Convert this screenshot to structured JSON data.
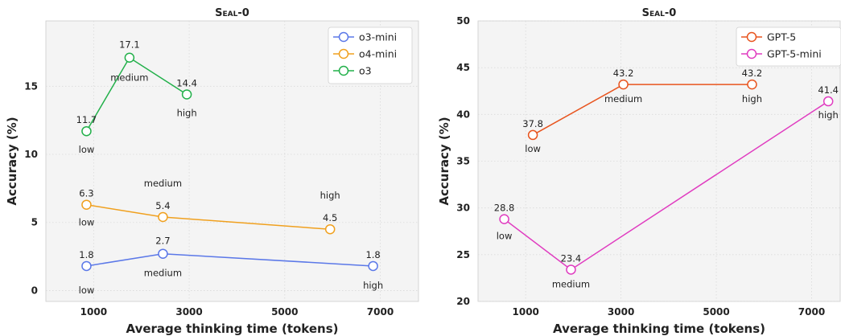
{
  "chart_data": [
    {
      "type": "line",
      "title": "Seal-0",
      "xlabel": "Average thinking time (tokens)",
      "ylabel": "Accuracy (%)",
      "xlim": [
        0,
        7800
      ],
      "ylim": [
        -0.8,
        19.8
      ],
      "xticks": [
        1000,
        3000,
        5000,
        7000
      ],
      "xtick_labels": [
        "1000",
        "3000",
        "5000",
        "7000"
      ],
      "yticks": [
        0,
        5,
        10,
        15
      ],
      "ytick_labels": [
        "0",
        "5",
        "10",
        "15"
      ],
      "grid": true,
      "legend": "top-right",
      "series": [
        {
          "name": "o3-mini",
          "color": "#5b78e8",
          "points": [
            {
              "x": 850,
              "y": 1.8,
              "value_label": "1.8",
              "effort": "low"
            },
            {
              "x": 2450,
              "y": 2.7,
              "value_label": "2.7",
              "effort": "medium"
            },
            {
              "x": 6850,
              "y": 1.8,
              "value_label": "1.8",
              "effort": "high"
            }
          ]
        },
        {
          "name": "o4-mini",
          "color": "#f0a01e",
          "points": [
            {
              "x": 850,
              "y": 6.3,
              "value_label": "6.3",
              "effort": "low"
            },
            {
              "x": 2450,
              "y": 5.4,
              "value_label": "5.4",
              "effort": "medium"
            },
            {
              "x": 5950,
              "y": 4.5,
              "value_label": "4.5",
              "effort": "high"
            }
          ]
        },
        {
          "name": "o3",
          "color": "#22b04a",
          "points": [
            {
              "x": 850,
              "y": 11.7,
              "value_label": "11.7",
              "effort": "low"
            },
            {
              "x": 1750,
              "y": 17.1,
              "value_label": "17.1",
              "effort": "medium"
            },
            {
              "x": 2950,
              "y": 14.4,
              "value_label": "14.4",
              "effort": "high"
            }
          ]
        }
      ]
    },
    {
      "type": "line",
      "title": "Seal-0",
      "xlabel": "Average thinking time (tokens)",
      "ylabel": "Accuracy (%)",
      "xlim": [
        0,
        7600
      ],
      "ylim": [
        20,
        50
      ],
      "xticks": [
        1000,
        3000,
        5000,
        7000
      ],
      "xtick_labels": [
        "1000",
        "3000",
        "5000",
        "7000"
      ],
      "yticks": [
        20,
        25,
        30,
        35,
        40,
        45,
        50
      ],
      "ytick_labels": [
        "20",
        "25",
        "30",
        "35",
        "40",
        "45",
        "50"
      ],
      "grid": true,
      "legend": "top-right",
      "series": [
        {
          "name": "GPT-5",
          "color": "#e8541e",
          "points": [
            {
              "x": 1150,
              "y": 37.8,
              "value_label": "37.8",
              "effort": "low"
            },
            {
              "x": 3050,
              "y": 43.2,
              "value_label": "43.2",
              "effort": "medium"
            },
            {
              "x": 5750,
              "y": 43.2,
              "value_label": "43.2",
              "effort": "high"
            }
          ]
        },
        {
          "name": "GPT-5-mini",
          "color": "#e03cc0",
          "points": [
            {
              "x": 550,
              "y": 28.8,
              "value_label": "28.8",
              "effort": "low"
            },
            {
              "x": 1950,
              "y": 23.4,
              "value_label": "23.4",
              "effort": "medium"
            },
            {
              "x": 7350,
              "y": 41.4,
              "value_label": "41.4",
              "effort": "high"
            }
          ]
        }
      ]
    }
  ]
}
